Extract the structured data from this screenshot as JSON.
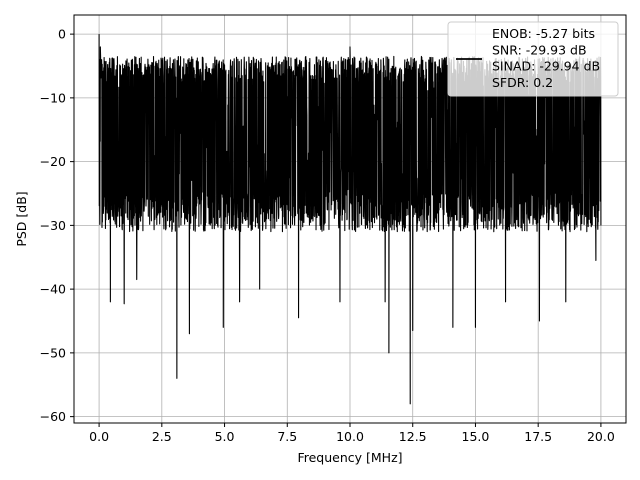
{
  "chart_data": {
    "type": "line",
    "title": "",
    "xlabel": "Frequency [MHz]",
    "ylabel": "PSD [dB]",
    "xlim": [
      -1,
      21
    ],
    "ylim": [
      -61,
      3
    ],
    "x_ticks": [
      0.0,
      2.5,
      5.0,
      7.5,
      10.0,
      12.5,
      15.0,
      17.5,
      20.0
    ],
    "x_tick_labels": [
      "0.0",
      "2.5",
      "5.0",
      "7.5",
      "10.0",
      "12.5",
      "15.0",
      "17.5",
      "20.0"
    ],
    "y_ticks": [
      0,
      -10,
      -20,
      -30,
      -40,
      -50,
      -60
    ],
    "y_tick_labels": [
      "0",
      "−10",
      "−20",
      "−30",
      "−40",
      "−50",
      "−60"
    ],
    "grid": true,
    "legend_position": "top-right",
    "legend_entries": [
      "ENOB: -5.27 bits",
      "SNR: -29.93 dB",
      "SINAD: -29.94 dB",
      "SFDR: 0.2"
    ],
    "series": [
      {
        "color": "#000000",
        "x_range": [
          0,
          20
        ],
        "typical_upper": -6,
        "typical_lower": -29,
        "peaks": [
          [
            0.0,
            0.0
          ],
          [
            0.05,
            -2.0
          ],
          [
            10.0,
            -2.0
          ]
        ],
        "dips": [
          [
            0.05,
            -38.0
          ],
          [
            0.45,
            -42.0
          ],
          [
            1.0,
            -42.3
          ],
          [
            1.5,
            -38.5
          ],
          [
            3.1,
            -54.0
          ],
          [
            3.6,
            -47.0
          ],
          [
            4.95,
            -46.0
          ],
          [
            5.6,
            -42.0
          ],
          [
            6.4,
            -40.0
          ],
          [
            7.95,
            -44.5
          ],
          [
            9.6,
            -42.0
          ],
          [
            11.4,
            -42.0
          ],
          [
            11.55,
            -50.0
          ],
          [
            12.4,
            -58.0
          ],
          [
            12.5,
            -46.5
          ],
          [
            14.1,
            -46.0
          ],
          [
            15.0,
            -46.0
          ],
          [
            16.2,
            -42.0
          ],
          [
            17.55,
            -45.0
          ],
          [
            18.6,
            -42.0
          ],
          [
            19.8,
            -35.5
          ]
        ]
      }
    ]
  }
}
